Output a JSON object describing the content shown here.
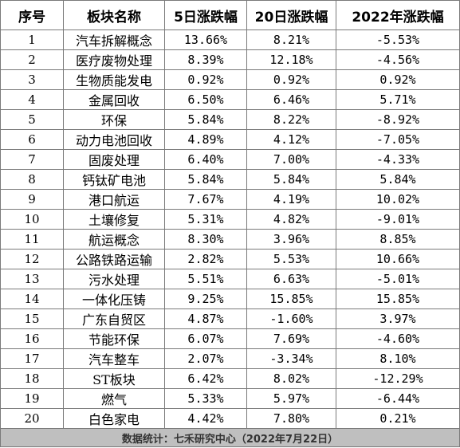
{
  "headers": [
    "序号",
    "板块名称",
    "5日涨跌幅",
    "20日涨跌幅",
    "2022年涨跌幅"
  ],
  "rows": [
    {
      "idx": "1",
      "name": "汽车拆解概念",
      "d5": "13.66%",
      "d20": "8.21%",
      "ytd": "-5.53%"
    },
    {
      "idx": "2",
      "name": "医疗废物处理",
      "d5": "8.39%",
      "d20": "12.18%",
      "ytd": "-4.56%"
    },
    {
      "idx": "3",
      "name": "生物质能发电",
      "d5": "0.92%",
      "d20": "0.92%",
      "ytd": "0.92%"
    },
    {
      "idx": "4",
      "name": "金属回收",
      "d5": "6.50%",
      "d20": "6.46%",
      "ytd": "5.71%"
    },
    {
      "idx": "5",
      "name": "环保",
      "d5": "5.84%",
      "d20": "8.22%",
      "ytd": "-8.92%"
    },
    {
      "idx": "6",
      "name": "动力电池回收",
      "d5": "4.89%",
      "d20": "4.12%",
      "ytd": "-7.05%"
    },
    {
      "idx": "7",
      "name": "固废处理",
      "d5": "6.40%",
      "d20": "7.00%",
      "ytd": "-4.33%"
    },
    {
      "idx": "8",
      "name": "钙钛矿电池",
      "d5": "5.84%",
      "d20": "5.84%",
      "ytd": "5.84%"
    },
    {
      "idx": "9",
      "name": "港口航运",
      "d5": "7.67%",
      "d20": "4.19%",
      "ytd": "10.02%"
    },
    {
      "idx": "10",
      "name": "土壤修复",
      "d5": "5.31%",
      "d20": "4.82%",
      "ytd": "-9.01%"
    },
    {
      "idx": "11",
      "name": "航运概念",
      "d5": "8.30%",
      "d20": "3.96%",
      "ytd": "8.85%"
    },
    {
      "idx": "12",
      "name": "公路铁路运输",
      "d5": "2.82%",
      "d20": "5.53%",
      "ytd": "10.66%"
    },
    {
      "idx": "13",
      "name": "污水处理",
      "d5": "5.51%",
      "d20": "6.63%",
      "ytd": "-5.01%"
    },
    {
      "idx": "14",
      "name": "一体化压铸",
      "d5": "9.25%",
      "d20": "15.85%",
      "ytd": "15.85%"
    },
    {
      "idx": "15",
      "name": "广东自贸区",
      "d5": "4.87%",
      "d20": "-1.60%",
      "ytd": "3.97%"
    },
    {
      "idx": "16",
      "name": "节能环保",
      "d5": "6.07%",
      "d20": "7.69%",
      "ytd": "-4.60%"
    },
    {
      "idx": "17",
      "name": "汽车整车",
      "d5": "2.07%",
      "d20": "-3.34%",
      "ytd": "8.10%"
    },
    {
      "idx": "18",
      "name": "ST板块",
      "d5": "6.42%",
      "d20": "8.02%",
      "ytd": "-12.29%"
    },
    {
      "idx": "19",
      "name": "燃气",
      "d5": "5.33%",
      "d20": "5.97%",
      "ytd": "-6.44%"
    },
    {
      "idx": "20",
      "name": "白色家电",
      "d5": "4.42%",
      "d20": "7.80%",
      "ytd": "0.21%"
    }
  ],
  "footer": "数据统计：七禾研究中心（2022年7月22日）",
  "colors": {
    "border": "#7a7a7a",
    "footer_bg": "#bfbfbf"
  }
}
